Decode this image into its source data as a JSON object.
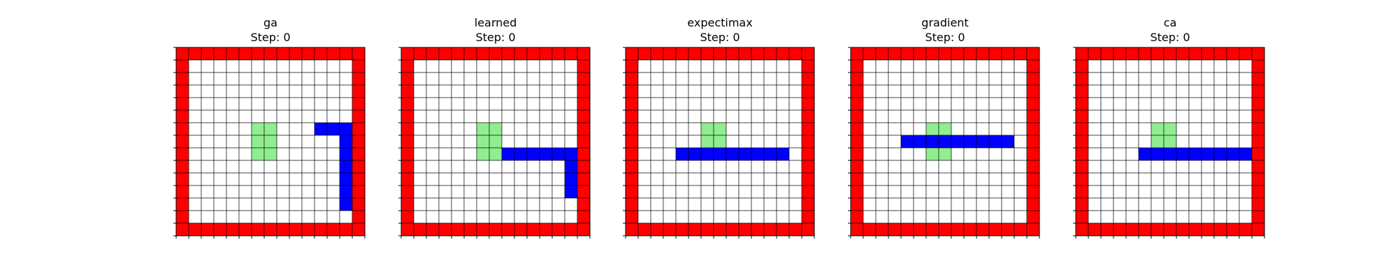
{
  "chart_data": [
    {
      "type": "heatmap",
      "title": "ga",
      "subtitle": "Step: 0",
      "grid": true,
      "rows": 15,
      "cols": 15,
      "colors": {
        "wall": "#ff0000",
        "empty": "#ffffff",
        "target": "#90ee90",
        "body": "#0000ff",
        "gridline": "#000000"
      },
      "wall": "border",
      "target_cells": [
        [
          6,
          6
        ],
        [
          6,
          7
        ],
        [
          7,
          6
        ],
        [
          7,
          7
        ],
        [
          8,
          6
        ],
        [
          8,
          7
        ]
      ],
      "body_cells": [
        [
          6,
          11
        ],
        [
          6,
          12
        ],
        [
          6,
          13
        ],
        [
          7,
          13
        ],
        [
          8,
          13
        ],
        [
          9,
          13
        ],
        [
          10,
          13
        ],
        [
          11,
          13
        ],
        [
          12,
          13
        ]
      ]
    },
    {
      "type": "heatmap",
      "title": "learned",
      "subtitle": "Step: 0",
      "grid": true,
      "rows": 15,
      "cols": 15,
      "colors": {
        "wall": "#ff0000",
        "empty": "#ffffff",
        "target": "#90ee90",
        "body": "#0000ff",
        "gridline": "#000000"
      },
      "wall": "border",
      "target_cells": [
        [
          6,
          6
        ],
        [
          6,
          7
        ],
        [
          7,
          6
        ],
        [
          7,
          7
        ],
        [
          8,
          6
        ],
        [
          8,
          7
        ]
      ],
      "body_cells": [
        [
          8,
          8
        ],
        [
          8,
          9
        ],
        [
          8,
          10
        ],
        [
          8,
          11
        ],
        [
          8,
          12
        ],
        [
          8,
          13
        ],
        [
          9,
          13
        ],
        [
          10,
          13
        ],
        [
          11,
          13
        ]
      ]
    },
    {
      "type": "heatmap",
      "title": "expectimax",
      "subtitle": "Step: 0",
      "grid": true,
      "rows": 15,
      "cols": 15,
      "colors": {
        "wall": "#ff0000",
        "empty": "#ffffff",
        "target": "#90ee90",
        "body": "#0000ff",
        "gridline": "#000000"
      },
      "wall": "border",
      "target_cells": [
        [
          6,
          6
        ],
        [
          6,
          7
        ],
        [
          7,
          6
        ],
        [
          7,
          7
        ]
      ],
      "body_cells": [
        [
          8,
          4
        ],
        [
          8,
          5
        ],
        [
          8,
          6
        ],
        [
          8,
          7
        ],
        [
          8,
          8
        ],
        [
          8,
          9
        ],
        [
          8,
          10
        ],
        [
          8,
          11
        ],
        [
          8,
          12
        ]
      ]
    },
    {
      "type": "heatmap",
      "title": "gradient",
      "subtitle": "Step: 0",
      "grid": true,
      "rows": 15,
      "cols": 15,
      "colors": {
        "wall": "#ff0000",
        "empty": "#ffffff",
        "target": "#90ee90",
        "body": "#0000ff",
        "gridline": "#000000"
      },
      "wall": "border",
      "target_cells": [
        [
          6,
          6
        ],
        [
          6,
          7
        ],
        [
          8,
          6
        ],
        [
          8,
          7
        ]
      ],
      "body_cells": [
        [
          7,
          4
        ],
        [
          7,
          5
        ],
        [
          7,
          6
        ],
        [
          7,
          7
        ],
        [
          7,
          8
        ],
        [
          7,
          9
        ],
        [
          7,
          10
        ],
        [
          7,
          11
        ],
        [
          7,
          12
        ]
      ]
    },
    {
      "type": "heatmap",
      "title": "ca",
      "subtitle": "Step: 0",
      "grid": true,
      "rows": 15,
      "cols": 15,
      "colors": {
        "wall": "#ff0000",
        "empty": "#ffffff",
        "target": "#90ee90",
        "body": "#0000ff",
        "gridline": "#000000"
      },
      "wall": "border",
      "target_cells": [
        [
          6,
          6
        ],
        [
          6,
          7
        ],
        [
          7,
          6
        ],
        [
          7,
          7
        ]
      ],
      "body_cells": [
        [
          8,
          5
        ],
        [
          8,
          6
        ],
        [
          8,
          7
        ],
        [
          8,
          8
        ],
        [
          8,
          9
        ],
        [
          8,
          10
        ],
        [
          8,
          11
        ],
        [
          8,
          12
        ],
        [
          8,
          13
        ]
      ]
    }
  ]
}
